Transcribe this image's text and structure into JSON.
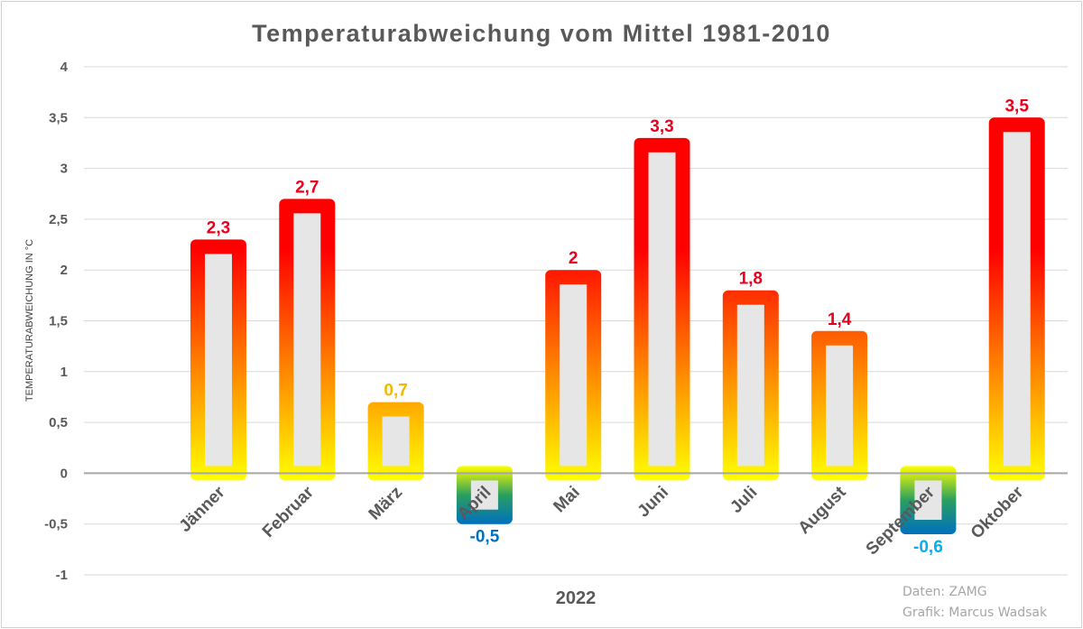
{
  "chart_data": {
    "type": "bar",
    "title": "Temperaturabweichung vom Mittel 1981-2010",
    "xlabel": "2022",
    "ylabel": "TEMPERATURABWEICHUNG IN °C",
    "ylim": [
      -1,
      4
    ],
    "yticks": [
      4,
      3.5,
      3,
      2.5,
      2,
      1.5,
      1,
      0.5,
      0,
      -0.5,
      -1
    ],
    "ytick_labels": [
      "4",
      "3,5",
      "3",
      "2,5",
      "2",
      "1,5",
      "1",
      "0,5",
      "0",
      "-0,5",
      "-1"
    ],
    "grid": true,
    "categories": [
      "Jänner",
      "Februar",
      "März",
      "April",
      "Mai",
      "Juni",
      "Juli",
      "August",
      "September",
      "Oktober"
    ],
    "values": [
      2.3,
      2.7,
      0.7,
      -0.5,
      2,
      3.3,
      1.8,
      1.4,
      -0.6,
      3.5
    ],
    "value_labels": [
      "2,3",
      "2,7",
      "0,7",
      "-0,5",
      "2",
      "3,3",
      "1,8",
      "1,4",
      "-0,6",
      "3,5"
    ],
    "label_colors": [
      "#e8001c",
      "#e8001c",
      "#f5b800",
      "#0070c0",
      "#e8001c",
      "#e8001c",
      "#e8001c",
      "#e8001c",
      "#00b0f0",
      "#e8001c"
    ],
    "colors": {
      "hot": "#ff0000",
      "warm": "#ffff00",
      "cool_mid": "#2a9f5f",
      "cold": "#0070c0",
      "bar_inner": "#e6e6e6",
      "grid": "#d9d9d9",
      "zero_line": "#a6a6a6"
    }
  },
  "credits": {
    "data": "Daten: ZAMG",
    "graphic": "Grafik: Marcus Wadsak"
  }
}
